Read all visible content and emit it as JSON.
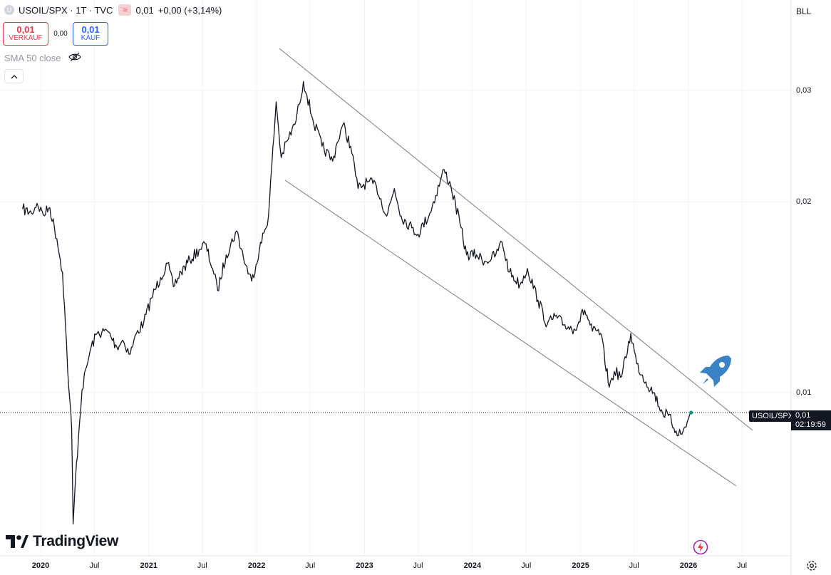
{
  "header": {
    "symbol": "USOIL/SPX · 1T · TVC",
    "symbol_initial": "U",
    "last_value": "0,01",
    "change": "+0,00 (+3,14%)"
  },
  "trade": {
    "sell_price": "0,01",
    "sell_label": "VERKAUF",
    "spread": "0,00",
    "buy_price": "0,01",
    "buy_label": "KAUF"
  },
  "indicator": {
    "label": "SMA 50 close"
  },
  "price_scale": {
    "currency": "BLL",
    "labels": [
      "0,03",
      "0,02",
      "0,01"
    ]
  },
  "time_axis": {
    "labels": [
      "2020",
      "Jul",
      "2021",
      "Jul",
      "2022",
      "Jul",
      "2023",
      "Jul",
      "2024",
      "Jul",
      "2025",
      "Jul",
      "2026",
      "Jul"
    ]
  },
  "last_price_tag": {
    "symbol": "USOIL/SPX",
    "price": "0,01",
    "countdown": "02:19:59"
  },
  "branding": {
    "logo_text": "TradingView"
  },
  "icons": {
    "visibility": "eye-off-icon",
    "collapse": "chevron-up-icon",
    "settings": "gear-icon",
    "rocket": "rocket-icon",
    "flash": "lightning-icon"
  },
  "colors": {
    "line": "#131722",
    "sell": "#f23645",
    "buy": "#2962ff",
    "rocket": "#3b82c4",
    "grid": "#f0f3fa",
    "channel": "#787b86"
  },
  "chart_data": {
    "type": "line",
    "title": "USOIL/SPX · 1T · TVC",
    "scale": "log",
    "ylim": [
      0.0055,
      0.037
    ],
    "grid": true,
    "y_ticks": [
      0.01,
      0.02,
      0.03
    ],
    "x_ticks": [
      "2020-01-01",
      "2020-07-01",
      "2021-01-01",
      "2021-07-01",
      "2022-01-01",
      "2022-07-01",
      "2023-01-01",
      "2023-07-01",
      "2024-01-01",
      "2024-07-01",
      "2025-01-01",
      "2025-07-01",
      "2026-01-01",
      "2026-07-01"
    ],
    "series": [
      {
        "values": [
          [
            "2019-11-01",
            0.0195
          ],
          [
            "2019-12-01",
            0.0192
          ],
          [
            "2019-12-20",
            0.0199
          ],
          [
            "2020-01-10",
            0.0191
          ],
          [
            "2020-02-01",
            0.0196
          ],
          [
            "2020-02-25",
            0.0175
          ],
          [
            "2020-03-15",
            0.0155
          ],
          [
            "2020-03-25",
            0.0128
          ],
          [
            "2020-04-05",
            0.0102
          ],
          [
            "2020-04-15",
            0.0088
          ],
          [
            "2020-04-20",
            0.0062
          ],
          [
            "2020-04-28",
            0.0073
          ],
          [
            "2020-05-08",
            0.0085
          ],
          [
            "2020-05-20",
            0.0101
          ],
          [
            "2020-06-05",
            0.011
          ],
          [
            "2020-06-20",
            0.0118
          ],
          [
            "2020-07-10",
            0.0124
          ],
          [
            "2020-08-15",
            0.0125
          ],
          [
            "2020-09-15",
            0.0118
          ],
          [
            "2020-10-05",
            0.0121
          ],
          [
            "2020-10-30",
            0.0115
          ],
          [
            "2020-11-20",
            0.0124
          ],
          [
            "2020-12-15",
            0.0129
          ],
          [
            "2021-01-10",
            0.0141
          ],
          [
            "2021-02-10",
            0.0152
          ],
          [
            "2021-03-05",
            0.016
          ],
          [
            "2021-03-25",
            0.0147
          ],
          [
            "2021-04-20",
            0.0155
          ],
          [
            "2021-05-20",
            0.0162
          ],
          [
            "2021-06-20",
            0.0168
          ],
          [
            "2021-07-10",
            0.0172
          ],
          [
            "2021-08-05",
            0.0157
          ],
          [
            "2021-08-22",
            0.0145
          ],
          [
            "2021-09-20",
            0.0165
          ],
          [
            "2021-10-25",
            0.018
          ],
          [
            "2021-11-25",
            0.0159
          ],
          [
            "2021-12-15",
            0.015
          ],
          [
            "2022-01-10",
            0.0168
          ],
          [
            "2022-02-10",
            0.019
          ],
          [
            "2022-03-08",
            0.0288
          ],
          [
            "2022-03-25",
            0.0235
          ],
          [
            "2022-04-15",
            0.025
          ],
          [
            "2022-05-10",
            0.0265
          ],
          [
            "2022-05-25",
            0.0285
          ],
          [
            "2022-06-08",
            0.031
          ],
          [
            "2022-06-20",
            0.0295
          ],
          [
            "2022-07-10",
            0.027
          ],
          [
            "2022-08-10",
            0.0245
          ],
          [
            "2022-09-15",
            0.0232
          ],
          [
            "2022-09-30",
            0.0248
          ],
          [
            "2022-10-20",
            0.0265
          ],
          [
            "2022-11-15",
            0.0245
          ],
          [
            "2022-12-10",
            0.021
          ],
          [
            "2023-01-10",
            0.0215
          ],
          [
            "2023-02-10",
            0.0212
          ],
          [
            "2023-03-17",
            0.019
          ],
          [
            "2023-04-12",
            0.021
          ],
          [
            "2023-05-05",
            0.019
          ],
          [
            "2023-06-10",
            0.0182
          ],
          [
            "2023-07-01",
            0.0178
          ],
          [
            "2023-08-10",
            0.0192
          ],
          [
            "2023-09-27",
            0.0225
          ],
          [
            "2023-10-20",
            0.0212
          ],
          [
            "2023-11-20",
            0.0185
          ],
          [
            "2023-12-12",
            0.0165
          ],
          [
            "2024-01-15",
            0.0165
          ],
          [
            "2024-02-15",
            0.0161
          ],
          [
            "2024-03-20",
            0.0165
          ],
          [
            "2024-04-10",
            0.0173
          ],
          [
            "2024-05-05",
            0.0155
          ],
          [
            "2024-06-10",
            0.0148
          ],
          [
            "2024-07-05",
            0.0157
          ],
          [
            "2024-08-10",
            0.014
          ],
          [
            "2024-09-10",
            0.0128
          ],
          [
            "2024-10-07",
            0.0132
          ],
          [
            "2024-11-05",
            0.0128
          ],
          [
            "2024-12-10",
            0.0126
          ],
          [
            "2025-01-15",
            0.0135
          ],
          [
            "2025-02-10",
            0.0125
          ],
          [
            "2025-03-10",
            0.0124
          ],
          [
            "2025-04-08",
            0.0102
          ],
          [
            "2025-04-25",
            0.0108
          ],
          [
            "2025-05-20",
            0.0106
          ],
          [
            "2025-06-20",
            0.0124
          ],
          [
            "2025-07-10",
            0.0111
          ],
          [
            "2025-08-10",
            0.0104
          ],
          [
            "2025-09-05",
            0.01
          ],
          [
            "2025-10-05",
            0.0093
          ],
          [
            "2025-10-25",
            0.0092
          ],
          [
            "2025-11-20",
            0.0087
          ],
          [
            "2025-12-10",
            0.0086
          ],
          [
            "2025-12-28",
            0.009
          ],
          [
            "2026-01-10",
            0.0093
          ]
        ]
      }
    ]
  }
}
